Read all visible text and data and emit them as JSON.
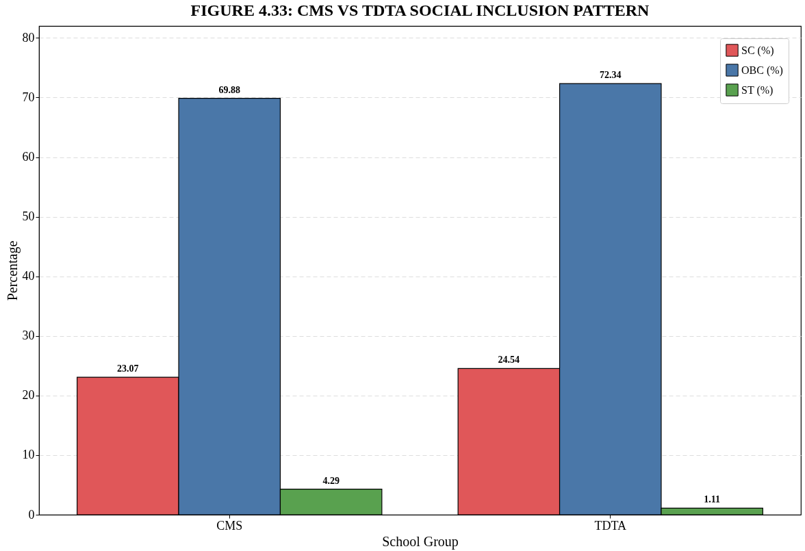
{
  "chart_data": {
    "type": "bar",
    "title": "FIGURE 4.33: CMS VS TDTA SOCIAL INCLUSION PATTERN",
    "xlabel": "School Group",
    "ylabel": "Percentage",
    "categories": [
      "CMS",
      "TDTA"
    ],
    "series": [
      {
        "name": "SC (%)",
        "color": "#e05759",
        "values": [
          23.07,
          24.54
        ]
      },
      {
        "name": "OBC (%)",
        "color": "#4a77a8",
        "values": [
          69.88,
          72.34
        ]
      },
      {
        "name": "ST (%)",
        "color": "#59a14f",
        "values": [
          4.29,
          1.11
        ]
      }
    ],
    "ylim": [
      0,
      82
    ],
    "yticks": [
      0,
      10,
      20,
      30,
      40,
      50,
      60,
      70,
      80
    ],
    "grid": "y",
    "legend": "top right",
    "data_labels": true
  }
}
